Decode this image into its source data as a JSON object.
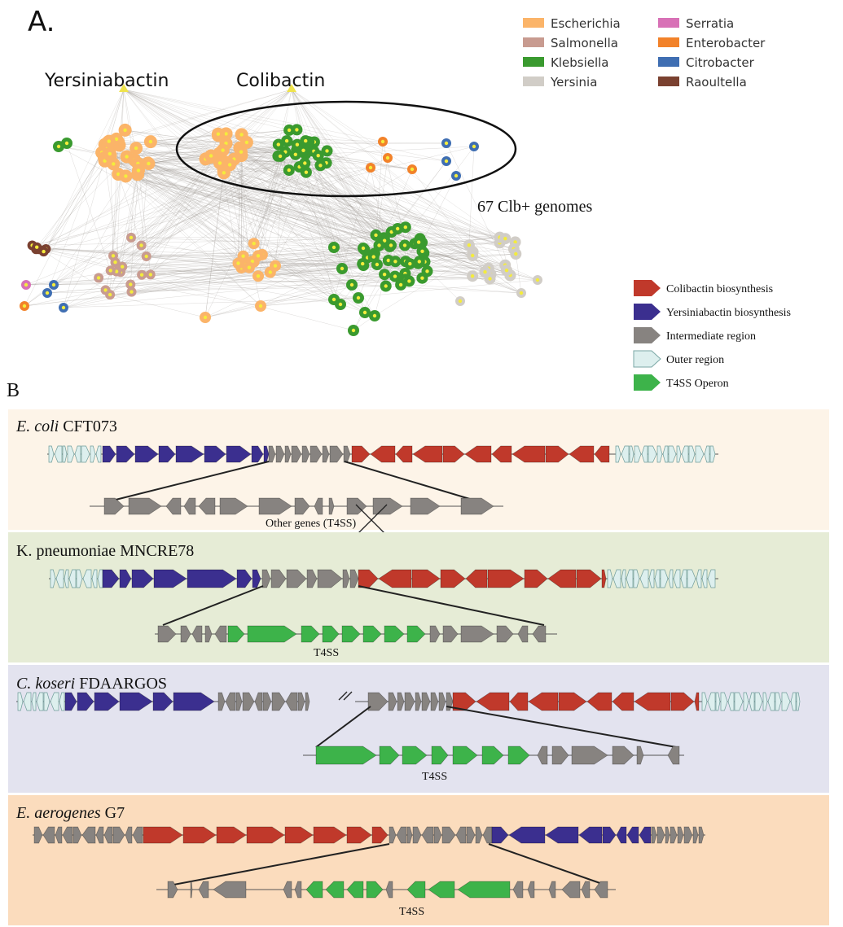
{
  "panel_a": {
    "letter": "A.",
    "hub_yersiniabactin": "Yersiniabactin",
    "hub_colibactin": "Colibactin",
    "annotation": "67 Clb+ genomes"
  },
  "genus_legend": [
    {
      "name": "Escherichia",
      "color": "#fbb469"
    },
    {
      "name": "Salmonella",
      "color": "#c89b90"
    },
    {
      "name": "Klebsiella",
      "color": "#3a9a2f"
    },
    {
      "name": "Yersinia",
      "color": "#d1cdc7"
    },
    {
      "name": "Serratia",
      "color": "#d871b6"
    },
    {
      "name": "Enterobacter",
      "color": "#f2822a"
    },
    {
      "name": "Citrobacter",
      "color": "#3f6eb2"
    },
    {
      "name": "Raoultella",
      "color": "#7a4130"
    }
  ],
  "region_legend": [
    {
      "name": "Colibactin biosynthesis",
      "color": "#c0392b"
    },
    {
      "name": "Yersiniabactin biosynthesis",
      "color": "#3b2f8f"
    },
    {
      "name": "Intermediate region",
      "color": "#878380"
    },
    {
      "name": "Outer region",
      "color": "#ddefee"
    },
    {
      "name": "T4SS Operon",
      "color": "#3db34a"
    }
  ],
  "panel_b": {
    "letter": "B",
    "tracks": [
      {
        "species": "E. coli",
        "strain": "CFT073",
        "italic": true,
        "bg": "#fdf4e8",
        "detail_label": "Other genes (T4SS)"
      },
      {
        "species": "K. pneumoniae",
        "strain": "MNCRE78",
        "italic": false,
        "bg": "#e6ecd6",
        "detail_label": "T4SS"
      },
      {
        "species": "C. koseri",
        "strain": "FDAARGOS",
        "italic": true,
        "bg": "#e3e3ef",
        "detail_label": "T4SS"
      },
      {
        "species": "E. aerogenes",
        "strain": "G7",
        "italic": true,
        "bg": "#fbdcbd",
        "detail_label": "T4SS"
      }
    ]
  }
}
